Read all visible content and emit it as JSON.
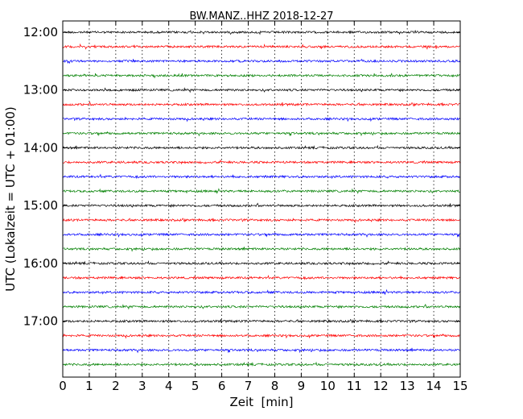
{
  "chart_data": {
    "type": "line",
    "title": "BW.MANZ..HHZ 2018-12-27",
    "xlabel": "Zeit  [min]",
    "ylabel": "UTC (Lokalzeit = UTC + 01:00)",
    "x_ticks": [
      "0",
      "1",
      "2",
      "3",
      "4",
      "5",
      "6",
      "7",
      "8",
      "9",
      "10",
      "11",
      "12",
      "13",
      "14",
      "15"
    ],
    "xlim": [
      0,
      15
    ],
    "y_ticks": [
      "12:00",
      "13:00",
      "14:00",
      "15:00",
      "16:00",
      "17:00"
    ],
    "grid_x": "dotted vertical lines at each minute",
    "series_colors": [
      "#000000",
      "#ff0000",
      "#0000ff",
      "#008000"
    ],
    "traces": [
      {
        "start": "12:00",
        "color": "#000000"
      },
      {
        "start": "12:15",
        "color": "#ff0000"
      },
      {
        "start": "12:30",
        "color": "#0000ff"
      },
      {
        "start": "12:45",
        "color": "#008000"
      },
      {
        "start": "13:00",
        "color": "#000000"
      },
      {
        "start": "13:15",
        "color": "#ff0000"
      },
      {
        "start": "13:30",
        "color": "#0000ff"
      },
      {
        "start": "13:45",
        "color": "#008000"
      },
      {
        "start": "14:00",
        "color": "#000000"
      },
      {
        "start": "14:15",
        "color": "#ff0000"
      },
      {
        "start": "14:30",
        "color": "#0000ff"
      },
      {
        "start": "14:45",
        "color": "#008000"
      },
      {
        "start": "15:00",
        "color": "#000000"
      },
      {
        "start": "15:15",
        "color": "#ff0000"
      },
      {
        "start": "15:30",
        "color": "#0000ff"
      },
      {
        "start": "15:45",
        "color": "#008000"
      },
      {
        "start": "16:00",
        "color": "#000000"
      },
      {
        "start": "16:15",
        "color": "#ff0000"
      },
      {
        "start": "16:30",
        "color": "#0000ff"
      },
      {
        "start": "16:45",
        "color": "#008000"
      },
      {
        "start": "17:00",
        "color": "#000000"
      },
      {
        "start": "17:15",
        "color": "#ff0000"
      },
      {
        "start": "17:30",
        "color": "#0000ff"
      },
      {
        "start": "17:45",
        "color": "#008000"
      }
    ]
  }
}
